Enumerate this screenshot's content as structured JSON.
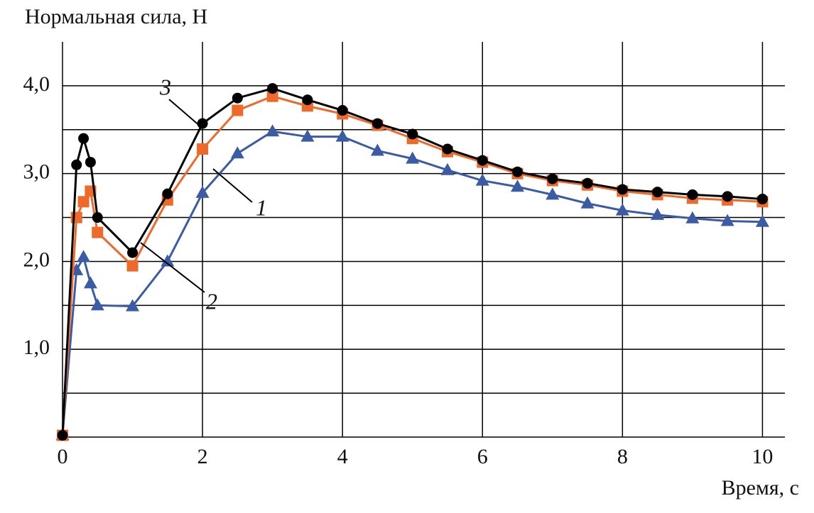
{
  "chart_data": {
    "type": "line",
    "title": "Нормальная сила, Н",
    "x_label": "Время, с",
    "x": [
      0,
      0.2,
      0.3,
      0.4,
      0.5,
      1,
      1.5,
      2,
      2.5,
      3,
      3.5,
      4,
      4.5,
      5,
      5.5,
      6,
      6.5,
      7,
      7.5,
      8,
      8.5,
      9,
      9.5,
      10
    ],
    "series": [
      {
        "name": "1",
        "color": "#3b5ba5",
        "marker": "triangle",
        "values": [
          0.02,
          1.9,
          2.05,
          1.75,
          1.5,
          1.49,
          2.0,
          2.78,
          3.23,
          3.48,
          3.42,
          3.42,
          3.26,
          3.17,
          3.04,
          2.92,
          2.85,
          2.76,
          2.66,
          2.58,
          2.53,
          2.49,
          2.46,
          2.45
        ]
      },
      {
        "name": "2",
        "color": "#ee6a2a",
        "marker": "square",
        "values": [
          0.02,
          2.5,
          2.68,
          2.8,
          2.33,
          1.95,
          2.7,
          3.28,
          3.72,
          3.88,
          3.77,
          3.68,
          3.55,
          3.4,
          3.25,
          3.13,
          3.0,
          2.92,
          2.87,
          2.8,
          2.76,
          2.72,
          2.7,
          2.68
        ]
      },
      {
        "name": "3",
        "color": "#000000",
        "marker": "circle",
        "values": [
          0.02,
          3.1,
          3.4,
          3.13,
          2.5,
          2.1,
          2.77,
          3.57,
          3.86,
          3.97,
          3.84,
          3.72,
          3.57,
          3.45,
          3.28,
          3.15,
          3.02,
          2.94,
          2.89,
          2.82,
          2.79,
          2.76,
          2.74,
          2.71
        ]
      }
    ],
    "xlim": [
      0,
      10.3
    ],
    "xticks": [
      0,
      2,
      4,
      6,
      8,
      10
    ],
    "ylim": [
      0,
      4.5
    ],
    "yticks": [
      {
        "value": 1,
        "label": "1,0"
      },
      {
        "value": 2,
        "label": "2,0"
      },
      {
        "value": 3,
        "label": "3,0"
      },
      {
        "value": 4,
        "label": "4,0"
      }
    ],
    "minor_yticks": [
      0.5,
      1.5,
      2.5,
      3.5
    ],
    "grid": true
  }
}
